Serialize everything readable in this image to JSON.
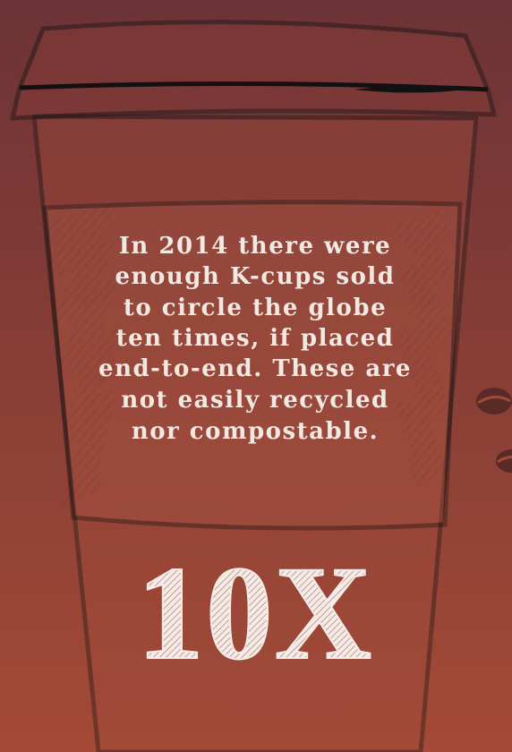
{
  "message": {
    "lines": [
      "In 2014 there were",
      "enough K-cups sold",
      "to circle the globe",
      "ten times, if placed",
      "end-to-end. These are",
      "not easily recycled",
      "nor compostable."
    ]
  },
  "stat": {
    "label": "10X"
  }
}
